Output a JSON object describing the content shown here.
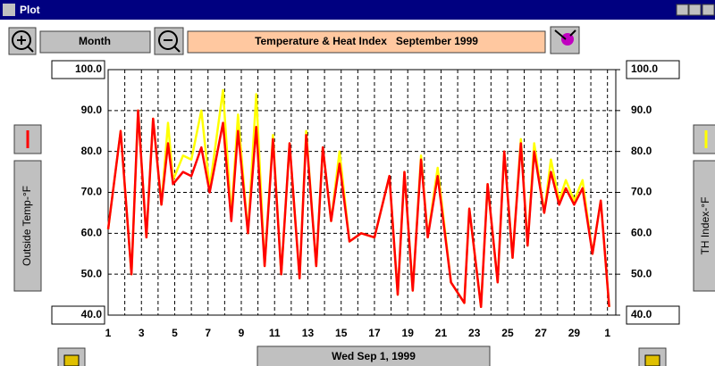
{
  "window": {
    "title": "Plot"
  },
  "toolbar": {
    "range_button": "Month"
  },
  "footer": {
    "date_button": "Wed Sep 1, 1999"
  },
  "chart_data": {
    "type": "line",
    "title": "Temperature & Heat Index   September 1999",
    "x": [
      1,
      1.75,
      2.4,
      2.8,
      3.3,
      3.7,
      4.2,
      4.6,
      4.9,
      5.5,
      6.0,
      6.6,
      7.1,
      7.9,
      8.4,
      8.8,
      9.4,
      9.9,
      10.4,
      10.9,
      11.4,
      11.9,
      12.5,
      12.9,
      13.5,
      13.9,
      14.4,
      14.9,
      15.5,
      16.2,
      17.0,
      17.9,
      18.4,
      18.8,
      19.3,
      19.8,
      20.2,
      20.8,
      21.6,
      22.4,
      22.7,
      23.4,
      23.8,
      24.4,
      24.8,
      25.3,
      25.8,
      26.2,
      26.6,
      27.2,
      27.6,
      28.1,
      28.5,
      29.0,
      29.5,
      30.1,
      30.6,
      31.1
    ],
    "series": [
      {
        "name": "TH Index-°F",
        "color": "#ffff00",
        "axis": "y2",
        "values": [
          61,
          85,
          50,
          90,
          59,
          88,
          67,
          87,
          73,
          79,
          78,
          90,
          71,
          95,
          64,
          89,
          60,
          94,
          52,
          84,
          50,
          82,
          49,
          85,
          52,
          81,
          63,
          80,
          58,
          60,
          59,
          74,
          45,
          75,
          46,
          79,
          59,
          76,
          48,
          43,
          66,
          42,
          72,
          48,
          80,
          54,
          83,
          57,
          82,
          65,
          78,
          68,
          73,
          68,
          73,
          55,
          68,
          42
        ]
      },
      {
        "name": "Outside Temp-°F",
        "color": "#ff0000",
        "values": [
          61,
          85,
          50,
          90,
          59,
          88,
          67,
          82,
          72,
          75,
          74,
          81,
          70,
          87,
          63,
          85,
          60,
          86,
          52,
          83,
          50,
          82,
          49,
          84,
          52,
          81,
          63,
          77,
          58,
          60,
          59,
          74,
          45,
          75,
          46,
          78,
          59,
          74,
          48,
          43,
          66,
          42,
          72,
          48,
          80,
          54,
          82,
          57,
          80,
          65,
          75,
          67,
          71,
          67,
          71,
          55,
          68,
          42
        ]
      }
    ],
    "xlim": [
      1,
      31.5
    ],
    "xticks": [
      1,
      3,
      5,
      7,
      9,
      11,
      13,
      15,
      17,
      19,
      21,
      23,
      25,
      27,
      29,
      {
        "value": 31,
        "label": "1"
      }
    ],
    "xminorticks": [
      2,
      4,
      6,
      8,
      10,
      12,
      14,
      16,
      18,
      20,
      22,
      24,
      26,
      28,
      30
    ],
    "ylim": [
      40,
      100
    ],
    "yticks": [
      {
        "value": 40,
        "label": "40.0"
      },
      {
        "value": 50,
        "label": "50.0"
      },
      {
        "value": 60,
        "label": "60.0"
      },
      {
        "value": 70,
        "label": "70.0"
      },
      {
        "value": 80,
        "label": "80.0"
      },
      {
        "value": 90,
        "label": "90.0"
      },
      {
        "value": 100,
        "label": "100.0"
      }
    ],
    "y2lim": [
      40,
      100
    ],
    "y2ticks": [
      {
        "value": 40,
        "label": "40.0"
      },
      {
        "value": 50,
        "label": "50.0"
      },
      {
        "value": 60,
        "label": "60.0"
      },
      {
        "value": 70,
        "label": "70.0"
      },
      {
        "value": 80,
        "label": "80.0"
      },
      {
        "value": 90,
        "label": "90.0"
      },
      {
        "value": 100,
        "label": "100.0"
      }
    ],
    "grid": true
  }
}
